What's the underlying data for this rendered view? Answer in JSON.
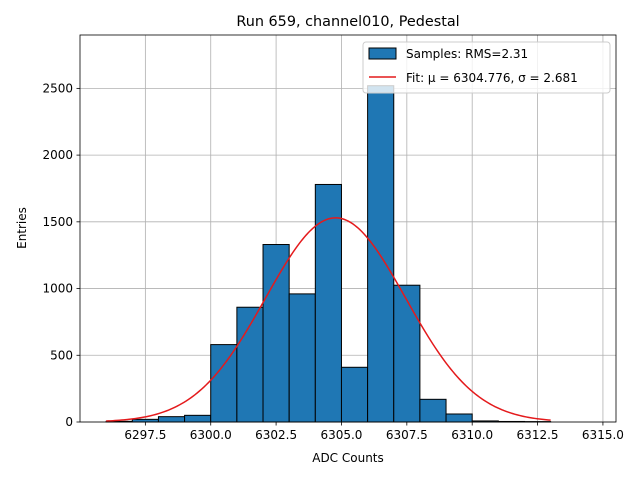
{
  "chart_data": {
    "type": "bar",
    "title": "Run 659, channel010, Pedestal",
    "xlabel": "ADC Counts",
    "ylabel": "Entries",
    "xlim": [
      6295.0,
      6315.5
    ],
    "ylim": [
      0,
      2900
    ],
    "xticks": [
      6297.5,
      6300.0,
      6302.5,
      6305.0,
      6307.5,
      6310.0,
      6312.5,
      6315.0
    ],
    "xtick_labels": [
      "6297.5",
      "6300.0",
      "6302.5",
      "6305.0",
      "6307.5",
      "6310.0",
      "6312.5",
      "6315.0"
    ],
    "yticks": [
      0,
      500,
      1000,
      1500,
      2000,
      2500
    ],
    "ytick_labels": [
      "0",
      "500",
      "1000",
      "1500",
      "2000",
      "2500"
    ],
    "grid": true,
    "legend_position": "top-right",
    "bar_color": "#1f77b4",
    "fit_color": "#e41a1c",
    "series": [
      {
        "name": "Samples: RMS=2.31",
        "kind": "histogram",
        "bin_edges": [
          6296,
          6297,
          6298,
          6299,
          6300,
          6301,
          6302,
          6303,
          6304,
          6305,
          6306,
          6307,
          6308,
          6309,
          6310,
          6311,
          6312,
          6313
        ],
        "values": [
          5,
          20,
          40,
          50,
          580,
          860,
          1330,
          960,
          1780,
          410,
          2520,
          1025,
          170,
          60,
          8,
          4,
          3
        ]
      },
      {
        "name": "Fit: μ = 6304.776, σ = 2.681",
        "kind": "gaussian",
        "mu": 6304.776,
        "sigma": 2.681,
        "amplitude": 1530,
        "x_range": [
          6296,
          6313
        ]
      }
    ],
    "legend": [
      {
        "label": "Samples: RMS=2.31",
        "kind": "patch"
      },
      {
        "label": "Fit: μ = 6304.776, σ = 2.681",
        "kind": "line"
      }
    ]
  }
}
